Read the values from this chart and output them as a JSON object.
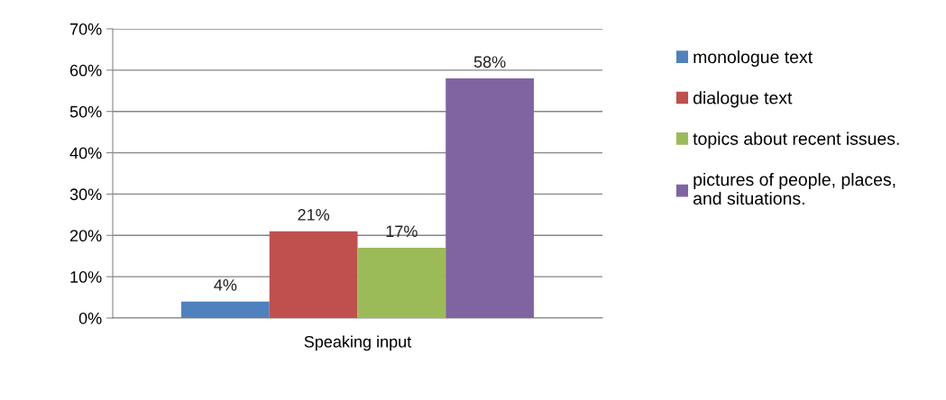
{
  "chart_data": {
    "type": "bar",
    "categories": [
      "Speaking input"
    ],
    "series": [
      {
        "name": "monologue text",
        "color": "#4f81bd",
        "values": [
          4
        ],
        "value_labels": [
          "4%"
        ]
      },
      {
        "name": "dialogue text",
        "color": "#c0504d",
        "values": [
          21
        ],
        "value_labels": [
          "21%"
        ]
      },
      {
        "name": "topics about recent issues.",
        "color": "#9bbb59",
        "values": [
          17
        ],
        "value_labels": [
          "17%"
        ]
      },
      {
        "name": "pictures of people, places, and situations.",
        "color": "#8064a2",
        "values": [
          58
        ],
        "value_labels": [
          "58%"
        ]
      }
    ],
    "ylim": [
      0,
      70
    ],
    "yticks": [
      {
        "value": 0,
        "label": "0%"
      },
      {
        "value": 10,
        "label": "10%"
      },
      {
        "value": 20,
        "label": "20%"
      },
      {
        "value": 30,
        "label": "30%"
      },
      {
        "value": 40,
        "label": "40%"
      },
      {
        "value": 50,
        "label": "50%"
      },
      {
        "value": 60,
        "label": "60%"
      },
      {
        "value": 70,
        "label": "70%"
      }
    ],
    "grid": "y",
    "legend": "right"
  }
}
